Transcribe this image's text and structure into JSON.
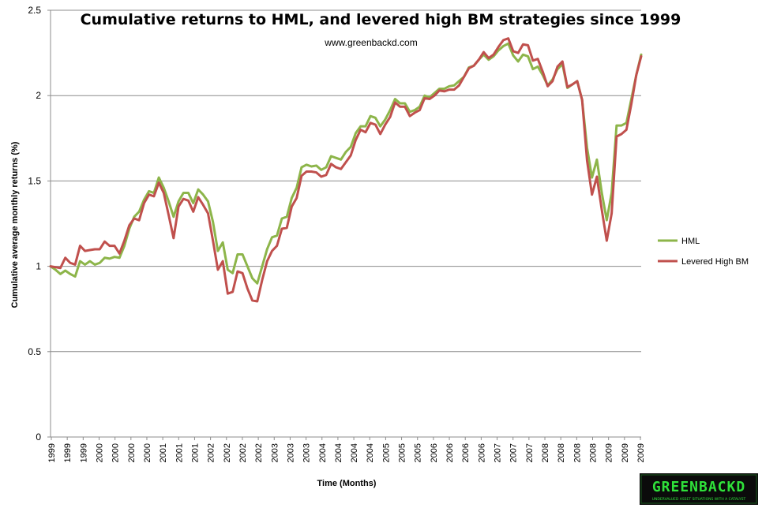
{
  "chart_data": {
    "type": "line",
    "title": "Cumulative returns to HML, and levered high BM strategies since 1999",
    "subtitle": "www.greenbackd.com",
    "xlabel": "Time (Months)",
    "ylabel": "Cumulative average  monthly returns (%)",
    "ylim": [
      0,
      2.5
    ],
    "yticks": [
      0,
      0.5,
      1,
      1.5,
      2,
      2.5
    ],
    "ytick_labels": [
      "0",
      "0.5",
      "1",
      "1.5",
      "2",
      "2.5"
    ],
    "grid": "horizontal",
    "legend_position": "right",
    "x_tick_labels": [
      "1999",
      "1999",
      "1999",
      "2000",
      "2000",
      "2000",
      "2000",
      "2001",
      "2001",
      "2001",
      "2002",
      "2002",
      "2002",
      "2002",
      "2003",
      "2003",
      "2003",
      "2004",
      "2004",
      "2004",
      "2004",
      "2005",
      "2005",
      "2005",
      "2006",
      "2006",
      "2006",
      "2006",
      "2007",
      "2007",
      "2007",
      "2008",
      "2008",
      "2008",
      "2008",
      "2009",
      "2009",
      "2009"
    ],
    "series": [
      {
        "name": "HML",
        "color": "#8db54a",
        "values": [
          1.0,
          0.98,
          0.955,
          0.975,
          0.955,
          0.94,
          1.03,
          1.01,
          1.03,
          1.01,
          1.02,
          1.05,
          1.045,
          1.055,
          1.05,
          1.12,
          1.22,
          1.29,
          1.32,
          1.39,
          1.44,
          1.43,
          1.52,
          1.46,
          1.38,
          1.29,
          1.38,
          1.43,
          1.43,
          1.37,
          1.45,
          1.42,
          1.38,
          1.26,
          1.09,
          1.14,
          0.98,
          0.96,
          1.07,
          1.07,
          1.0,
          0.93,
          0.9,
          1.0,
          1.1,
          1.17,
          1.18,
          1.28,
          1.29,
          1.4,
          1.46,
          1.58,
          1.595,
          1.585,
          1.59,
          1.565,
          1.58,
          1.645,
          1.635,
          1.625,
          1.67,
          1.7,
          1.78,
          1.82,
          1.82,
          1.88,
          1.87,
          1.82,
          1.86,
          1.915,
          1.98,
          1.955,
          1.955,
          1.905,
          1.915,
          1.935,
          2.0,
          1.99,
          2.015,
          2.04,
          2.04,
          2.055,
          2.06,
          2.085,
          2.11,
          2.165,
          2.175,
          2.21,
          2.24,
          2.21,
          2.23,
          2.265,
          2.29,
          2.305,
          2.235,
          2.2,
          2.24,
          2.23,
          2.155,
          2.17,
          2.12,
          2.06,
          2.095,
          2.155,
          2.185,
          2.045,
          2.065,
          2.085,
          1.975,
          1.695,
          1.52,
          1.625,
          1.43,
          1.27,
          1.43,
          1.825,
          1.825,
          1.84,
          1.98,
          2.12,
          2.24
        ]
      },
      {
        "name": "Levered High BM",
        "color": "#c0504d",
        "values": [
          1.0,
          0.995,
          0.99,
          1.05,
          1.02,
          1.01,
          1.12,
          1.09,
          1.095,
          1.1,
          1.1,
          1.145,
          1.12,
          1.12,
          1.075,
          1.15,
          1.24,
          1.28,
          1.27,
          1.37,
          1.42,
          1.41,
          1.49,
          1.43,
          1.3,
          1.165,
          1.35,
          1.395,
          1.385,
          1.32,
          1.405,
          1.36,
          1.31,
          1.15,
          0.98,
          1.03,
          0.84,
          0.85,
          0.97,
          0.96,
          0.87,
          0.8,
          0.795,
          0.92,
          1.03,
          1.09,
          1.12,
          1.22,
          1.225,
          1.35,
          1.4,
          1.53,
          1.555,
          1.555,
          1.55,
          1.525,
          1.535,
          1.6,
          1.58,
          1.57,
          1.61,
          1.65,
          1.74,
          1.8,
          1.785,
          1.84,
          1.83,
          1.775,
          1.83,
          1.875,
          1.96,
          1.935,
          1.935,
          1.88,
          1.9,
          1.915,
          1.985,
          1.98,
          2.0,
          2.03,
          2.025,
          2.035,
          2.035,
          2.06,
          2.11,
          2.16,
          2.175,
          2.21,
          2.255,
          2.22,
          2.24,
          2.285,
          2.325,
          2.335,
          2.26,
          2.25,
          2.3,
          2.295,
          2.205,
          2.215,
          2.14,
          2.055,
          2.085,
          2.17,
          2.2,
          2.05,
          2.065,
          2.085,
          1.975,
          1.62,
          1.42,
          1.525,
          1.33,
          1.15,
          1.31,
          1.76,
          1.775,
          1.8,
          1.95,
          2.12,
          2.23
        ]
      }
    ]
  },
  "logo": {
    "main": "GREENBACKD",
    "tagline": "UNDERVALUED ASSET SITUATIONS WITH A CATALYST"
  }
}
